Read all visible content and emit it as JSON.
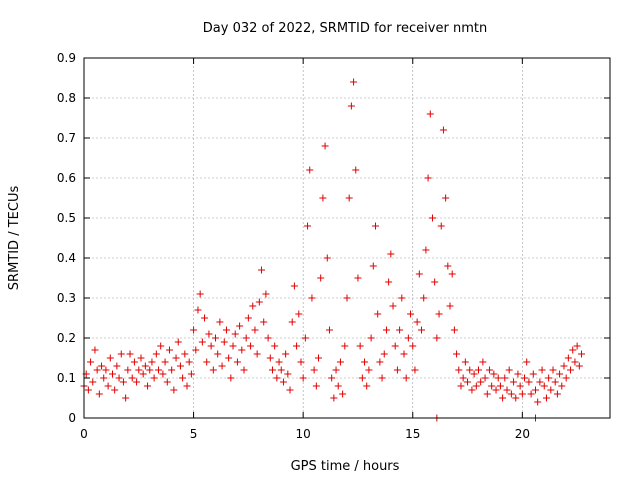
{
  "chart_data": {
    "type": "scatter",
    "title": "Day 032 of 2022, SRMTID for receiver nmtn",
    "xlabel": "GPS time / hours",
    "ylabel": "SRMTID / TECUs",
    "xlim": [
      0,
      24
    ],
    "ylim": [
      0,
      0.9
    ],
    "xticks": [
      0,
      5,
      10,
      15,
      20
    ],
    "yticks": [
      0,
      0.1,
      0.2,
      0.3,
      0.4,
      0.5,
      0.6,
      0.7,
      0.8,
      0.9
    ],
    "xtick_labels": [
      "0",
      "5",
      "10",
      "15",
      "20"
    ],
    "ytick_labels": [
      "0",
      "0.1",
      "0.2",
      "0.3",
      "0.4",
      "0.5",
      "0.6",
      "0.7",
      "0.8",
      "0.9"
    ],
    "grid": true,
    "marker": "+",
    "color": "#e00000",
    "series": [
      {
        "name": "SRMTID",
        "points": [
          [
            0.0,
            0.08
          ],
          [
            0.1,
            0.11
          ],
          [
            0.2,
            0.07
          ],
          [
            0.3,
            0.14
          ],
          [
            0.4,
            0.09
          ],
          [
            0.5,
            0.17
          ],
          [
            0.6,
            0.12
          ],
          [
            0.7,
            0.06
          ],
          [
            0.8,
            0.13
          ],
          [
            0.9,
            0.1
          ],
          [
            1.0,
            0.12
          ],
          [
            1.1,
            0.08
          ],
          [
            1.2,
            0.15
          ],
          [
            1.3,
            0.11
          ],
          [
            1.4,
            0.07
          ],
          [
            1.5,
            0.13
          ],
          [
            1.6,
            0.1
          ],
          [
            1.7,
            0.16
          ],
          [
            1.8,
            0.09
          ],
          [
            1.9,
            0.05
          ],
          [
            2.0,
            0.12
          ],
          [
            2.1,
            0.16
          ],
          [
            2.2,
            0.1
          ],
          [
            2.3,
            0.14
          ],
          [
            2.4,
            0.09
          ],
          [
            2.5,
            0.12
          ],
          [
            2.6,
            0.15
          ],
          [
            2.7,
            0.11
          ],
          [
            2.8,
            0.13
          ],
          [
            2.9,
            0.08
          ],
          [
            3.0,
            0.12
          ],
          [
            3.1,
            0.14
          ],
          [
            3.2,
            0.1
          ],
          [
            3.3,
            0.16
          ],
          [
            3.4,
            0.12
          ],
          [
            3.5,
            0.18
          ],
          [
            3.6,
            0.11
          ],
          [
            3.7,
            0.14
          ],
          [
            3.8,
            0.09
          ],
          [
            3.9,
            0.17
          ],
          [
            4.0,
            0.12
          ],
          [
            4.1,
            0.07
          ],
          [
            4.2,
            0.15
          ],
          [
            4.3,
            0.19
          ],
          [
            4.4,
            0.13
          ],
          [
            4.5,
            0.1
          ],
          [
            4.6,
            0.16
          ],
          [
            4.7,
            0.08
          ],
          [
            4.8,
            0.14
          ],
          [
            4.9,
            0.11
          ],
          [
            5.0,
            0.22
          ],
          [
            5.1,
            0.17
          ],
          [
            5.2,
            0.27
          ],
          [
            5.3,
            0.31
          ],
          [
            5.4,
            0.19
          ],
          [
            5.5,
            0.25
          ],
          [
            5.6,
            0.14
          ],
          [
            5.7,
            0.21
          ],
          [
            5.8,
            0.18
          ],
          [
            5.9,
            0.12
          ],
          [
            6.0,
            0.2
          ],
          [
            6.1,
            0.16
          ],
          [
            6.2,
            0.24
          ],
          [
            6.3,
            0.13
          ],
          [
            6.4,
            0.19
          ],
          [
            6.5,
            0.22
          ],
          [
            6.6,
            0.15
          ],
          [
            6.7,
            0.1
          ],
          [
            6.8,
            0.18
          ],
          [
            6.9,
            0.21
          ],
          [
            7.0,
            0.14
          ],
          [
            7.1,
            0.23
          ],
          [
            7.2,
            0.17
          ],
          [
            7.3,
            0.12
          ],
          [
            7.4,
            0.2
          ],
          [
            7.5,
            0.25
          ],
          [
            7.6,
            0.18
          ],
          [
            7.7,
            0.28
          ],
          [
            7.8,
            0.22
          ],
          [
            7.9,
            0.16
          ],
          [
            8.0,
            0.29
          ],
          [
            8.1,
            0.37
          ],
          [
            8.2,
            0.24
          ],
          [
            8.3,
            0.31
          ],
          [
            8.4,
            0.2
          ],
          [
            8.5,
            0.15
          ],
          [
            8.6,
            0.12
          ],
          [
            8.7,
            0.18
          ],
          [
            8.8,
            0.1
          ],
          [
            8.9,
            0.14
          ],
          [
            9.0,
            0.12
          ],
          [
            9.1,
            0.09
          ],
          [
            9.2,
            0.16
          ],
          [
            9.3,
            0.11
          ],
          [
            9.4,
            0.07
          ],
          [
            9.5,
            0.24
          ],
          [
            9.6,
            0.33
          ],
          [
            9.7,
            0.18
          ],
          [
            9.8,
            0.26
          ],
          [
            9.9,
            0.14
          ],
          [
            10.0,
            0.1
          ],
          [
            10.1,
            0.2
          ],
          [
            10.2,
            0.48
          ],
          [
            10.3,
            0.62
          ],
          [
            10.4,
            0.3
          ],
          [
            10.5,
            0.12
          ],
          [
            10.6,
            0.08
          ],
          [
            10.7,
            0.15
          ],
          [
            10.8,
            0.35
          ],
          [
            10.9,
            0.55
          ],
          [
            11.0,
            0.68
          ],
          [
            11.1,
            0.4
          ],
          [
            11.2,
            0.22
          ],
          [
            11.3,
            0.1
          ],
          [
            11.4,
            0.05
          ],
          [
            11.5,
            0.12
          ],
          [
            11.6,
            0.08
          ],
          [
            11.7,
            0.14
          ],
          [
            11.8,
            0.06
          ],
          [
            11.9,
            0.18
          ],
          [
            12.0,
            0.3
          ],
          [
            12.1,
            0.55
          ],
          [
            12.2,
            0.78
          ],
          [
            12.3,
            0.84
          ],
          [
            12.4,
            0.62
          ],
          [
            12.5,
            0.35
          ],
          [
            12.6,
            0.18
          ],
          [
            12.7,
            0.1
          ],
          [
            12.8,
            0.14
          ],
          [
            12.9,
            0.08
          ],
          [
            13.0,
            0.12
          ],
          [
            13.1,
            0.2
          ],
          [
            13.2,
            0.38
          ],
          [
            13.3,
            0.48
          ],
          [
            13.4,
            0.26
          ],
          [
            13.5,
            0.14
          ],
          [
            13.6,
            0.1
          ],
          [
            13.7,
            0.16
          ],
          [
            13.8,
            0.22
          ],
          [
            13.9,
            0.34
          ],
          [
            14.0,
            0.41
          ],
          [
            14.1,
            0.28
          ],
          [
            14.2,
            0.18
          ],
          [
            14.3,
            0.12
          ],
          [
            14.4,
            0.22
          ],
          [
            14.5,
            0.3
          ],
          [
            14.6,
            0.16
          ],
          [
            14.7,
            0.1
          ],
          [
            14.8,
            0.2
          ],
          [
            14.9,
            0.26
          ],
          [
            15.0,
            0.18
          ],
          [
            15.1,
            0.12
          ],
          [
            15.2,
            0.24
          ],
          [
            15.3,
            0.36
          ],
          [
            15.4,
            0.22
          ],
          [
            15.5,
            0.3
          ],
          [
            15.6,
            0.42
          ],
          [
            15.7,
            0.6
          ],
          [
            15.8,
            0.76
          ],
          [
            15.9,
            0.5
          ],
          [
            16.0,
            0.34
          ],
          [
            16.1,
            0.2
          ],
          [
            16.2,
            0.26
          ],
          [
            16.3,
            0.48
          ],
          [
            16.4,
            0.72
          ],
          [
            16.5,
            0.55
          ],
          [
            16.6,
            0.38
          ],
          [
            16.7,
            0.28
          ],
          [
            16.8,
            0.36
          ],
          [
            16.9,
            0.22
          ],
          [
            17.0,
            0.16
          ],
          [
            17.1,
            0.12
          ],
          [
            17.2,
            0.08
          ],
          [
            17.3,
            0.1
          ],
          [
            17.4,
            0.14
          ],
          [
            17.5,
            0.09
          ],
          [
            17.6,
            0.12
          ],
          [
            17.7,
            0.07
          ],
          [
            17.8,
            0.11
          ],
          [
            17.9,
            0.08
          ],
          [
            18.0,
            0.12
          ],
          [
            18.1,
            0.09
          ],
          [
            18.2,
            0.14
          ],
          [
            18.3,
            0.1
          ],
          [
            18.4,
            0.06
          ],
          [
            18.5,
            0.12
          ],
          [
            18.6,
            0.08
          ],
          [
            18.7,
            0.11
          ],
          [
            18.8,
            0.07
          ],
          [
            18.9,
            0.1
          ],
          [
            19.0,
            0.08
          ],
          [
            19.1,
            0.05
          ],
          [
            19.2,
            0.1
          ],
          [
            19.3,
            0.07
          ],
          [
            19.4,
            0.12
          ],
          [
            19.5,
            0.06
          ],
          [
            19.6,
            0.09
          ],
          [
            19.7,
            0.05
          ],
          [
            19.8,
            0.11
          ],
          [
            19.9,
            0.08
          ],
          [
            20.0,
            0.06
          ],
          [
            20.1,
            0.1
          ],
          [
            20.2,
            0.14
          ],
          [
            20.3,
            0.09
          ],
          [
            20.4,
            0.06
          ],
          [
            20.5,
            0.11
          ],
          [
            20.6,
            0.07
          ],
          [
            20.7,
            0.04
          ],
          [
            20.8,
            0.09
          ],
          [
            20.9,
            0.12
          ],
          [
            21.0,
            0.08
          ],
          [
            21.1,
            0.05
          ],
          [
            21.2,
            0.1
          ],
          [
            21.3,
            0.07
          ],
          [
            21.4,
            0.12
          ],
          [
            21.5,
            0.09
          ],
          [
            21.6,
            0.06
          ],
          [
            21.7,
            0.11
          ],
          [
            21.8,
            0.08
          ],
          [
            21.9,
            0.13
          ],
          [
            22.0,
            0.1
          ],
          [
            22.1,
            0.15
          ],
          [
            22.2,
            0.12
          ],
          [
            22.3,
            0.17
          ],
          [
            22.4,
            0.14
          ],
          [
            22.5,
            0.18
          ],
          [
            22.6,
            0.13
          ],
          [
            22.7,
            0.16
          ],
          [
            16.1,
            0.0
          ],
          [
            20.6,
            0.0
          ]
        ]
      }
    ]
  }
}
